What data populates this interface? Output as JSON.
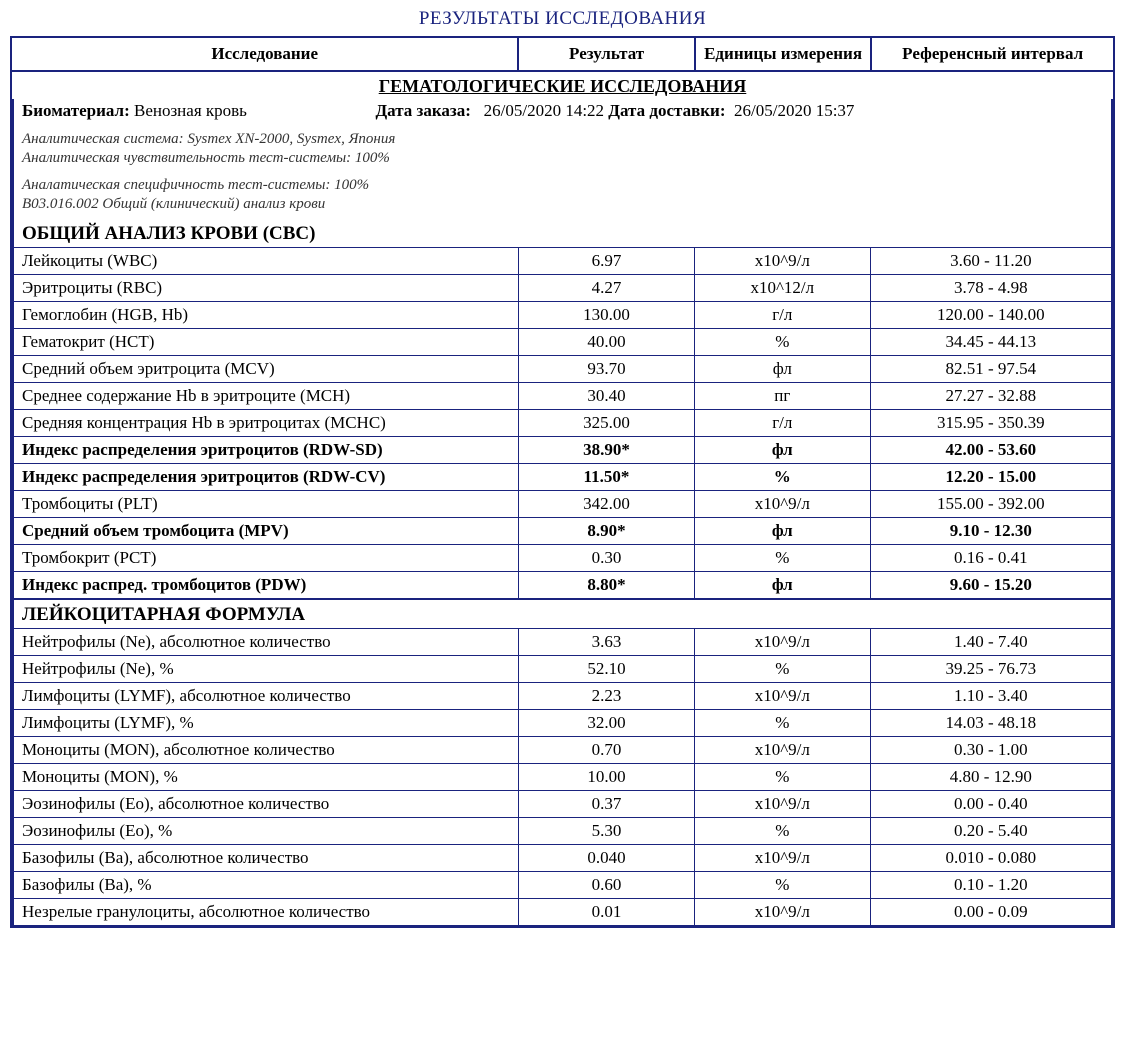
{
  "title": "РЕЗУЛЬТАТЫ ИССЛЕДОВАНИЯ",
  "headers": {
    "study": "Исследование",
    "result": "Результат",
    "units": "Единицы измерения",
    "ref": "Референсный интервал"
  },
  "section_title": "ГЕМАТОЛОГИЧЕСКИЕ ИССЛЕДОВАНИЯ",
  "info": {
    "biomaterial_label": "Биоматериал:",
    "biomaterial_value": "Венозная кровь",
    "order_date_label": "Дата заказа:",
    "order_date_value": "26/05/2020 14:22",
    "delivery_date_label": "Дата доставки:",
    "delivery_date_value": "26/05/2020 15:37",
    "meta1": "Аналитическая система: Sysmex XN-2000, Sysmex, Япония",
    "meta2": "Аналитическая чувствительность тест-системы: 100%",
    "meta3": "Аналатическая специфичность тест-системы: 100%",
    "meta4": "B03.016.002 Общий (клинический) анализ крови"
  },
  "section_cbc": "ОБЩИЙ АНАЛИЗ КРОВИ (CBC)",
  "section_leuk": "ЛЕЙКОЦИТАРНАЯ ФОРМУЛА",
  "rows_cbc": [
    {
      "name": "Лейкоциты (WBC)",
      "res": "6.97",
      "unit": "х10^9/л",
      "ref": "3.60 - 11.20",
      "bold": false
    },
    {
      "name": "Эритроциты (RBC)",
      "res": "4.27",
      "unit": "х10^12/л",
      "ref": "3.78 - 4.98",
      "bold": false
    },
    {
      "name": "Гемоглобин (HGB, Hb)",
      "res": "130.00",
      "unit": "г/л",
      "ref": "120.00 - 140.00",
      "bold": false
    },
    {
      "name": "Гематокрит (HCT)",
      "res": "40.00",
      "unit": "%",
      "ref": "34.45 - 44.13",
      "bold": false
    },
    {
      "name": "Средний объем эритроцита (MCV)",
      "res": "93.70",
      "unit": "фл",
      "ref": "82.51 - 97.54",
      "bold": false
    },
    {
      "name": "Среднее содержание Hb в эритроците (MCH)",
      "res": "30.40",
      "unit": "пг",
      "ref": "27.27 - 32.88",
      "bold": false
    },
    {
      "name": "Средняя концентрация Hb в эритроцитах (MCHC)",
      "res": "325.00",
      "unit": "г/л",
      "ref": "315.95 - 350.39",
      "bold": false
    },
    {
      "name": "Индекс распределения эритроцитов (RDW-SD)",
      "res": "38.90*",
      "unit": "фл",
      "ref": "42.00 - 53.60",
      "bold": true
    },
    {
      "name": "Индекс распределения эритроцитов (RDW-CV)",
      "res": "11.50*",
      "unit": "%",
      "ref": "12.20 - 15.00",
      "bold": true
    },
    {
      "name": "Тромбоциты (PLT)",
      "res": "342.00",
      "unit": "х10^9/л",
      "ref": "155.00 - 392.00",
      "bold": false
    },
    {
      "name": "Средний объем тромбоцита (MPV)",
      "res": "8.90*",
      "unit": "фл",
      "ref": "9.10 - 12.30",
      "bold": true
    },
    {
      "name": "Тромбокрит (PCT)",
      "res": "0.30",
      "unit": "%",
      "ref": "0.16 - 0.41",
      "bold": false
    },
    {
      "name": "Индекс распред. тромбоцитов (PDW)",
      "res": "8.80*",
      "unit": "фл",
      "ref": "9.60 - 15.20",
      "bold": true
    }
  ],
  "rows_leuk": [
    {
      "name": "Нейтрофилы (Ne), абсолютное количество",
      "res": "3.63",
      "unit": "х10^9/л",
      "ref": "1.40 - 7.40",
      "bold": false
    },
    {
      "name": "Нейтрофилы (Ne), %",
      "res": "52.10",
      "unit": "%",
      "ref": "39.25 - 76.73",
      "bold": false
    },
    {
      "name": "Лимфоциты (LYMF), абсолютное количество",
      "res": "2.23",
      "unit": "х10^9/л",
      "ref": "1.10 - 3.40",
      "bold": false
    },
    {
      "name": "Лимфоциты (LYMF), %",
      "res": "32.00",
      "unit": "%",
      "ref": "14.03 - 48.18",
      "bold": false
    },
    {
      "name": "Моноциты (MON), абсолютное количество",
      "res": "0.70",
      "unit": "х10^9/л",
      "ref": "0.30 - 1.00",
      "bold": false
    },
    {
      "name": "Моноциты (MON), %",
      "res": "10.00",
      "unit": "%",
      "ref": "4.80 - 12.90",
      "bold": false
    },
    {
      "name": "Эозинофилы (Eo), абсолютное количество",
      "res": "0.37",
      "unit": "х10^9/л",
      "ref": "0.00 - 0.40",
      "bold": false
    },
    {
      "name": "Эозинофилы (Eo), %",
      "res": "5.30",
      "unit": "%",
      "ref": "0.20 - 5.40",
      "bold": false
    },
    {
      "name": "Базофилы (Ba), абсолютное количество",
      "res": "0.040",
      "unit": "х10^9/л",
      "ref": "0.010 - 0.080",
      "bold": false
    },
    {
      "name": "Базофилы (Ba), %",
      "res": "0.60",
      "unit": "%",
      "ref": "0.10 - 1.20",
      "bold": false
    },
    {
      "name": "Незрелые гранулоциты, абсолютное количество",
      "res": "0.01",
      "unit": "х10^9/л",
      "ref": "0.00 - 0.09",
      "bold": false
    }
  ]
}
